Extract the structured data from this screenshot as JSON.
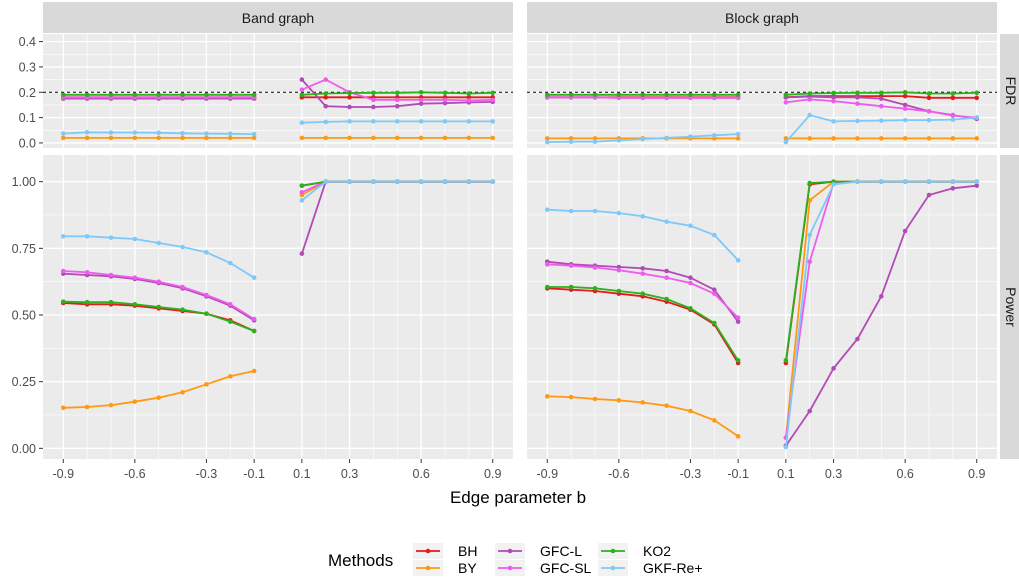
{
  "chart_data": {
    "type": "line",
    "xlabel": "Edge parameter b",
    "x_ticks": [
      -0.9,
      -0.6,
      -0.3,
      -0.1,
      0.1,
      0.3,
      0.6,
      0.9
    ],
    "x_tick_labels": [
      "-0.9",
      "-0.6",
      "-0.3",
      "-0.1",
      "0.1",
      "0.3",
      "0.6",
      "0.9"
    ],
    "panel_cols": [
      "Band graph",
      "Block graph"
    ],
    "panel_rows": [
      "FDR",
      "Power"
    ],
    "fdr_y_ticks": [
      0.0,
      0.1,
      0.2,
      0.3,
      0.4
    ],
    "fdr_y_tick_labels": [
      "0.0",
      "0.1",
      "0.2",
      "0.3",
      "0.4"
    ],
    "fdr_ylim": [
      -0.02,
      0.43
    ],
    "fdr_reference_line": 0.2,
    "power_y_ticks": [
      0.0,
      0.25,
      0.5,
      0.75,
      1.0
    ],
    "power_y_tick_labels": [
      "0.00",
      "0.25",
      "0.50",
      "0.75",
      "1.00"
    ],
    "power_ylim": [
      -0.04,
      1.1
    ],
    "grid": true,
    "legend_title": "Methods",
    "legend_position": "bottom",
    "methods": [
      {
        "name": "BH",
        "color": "#E41A1C"
      },
      {
        "name": "BY",
        "color": "#FF9912"
      },
      {
        "name": "GFC-L",
        "color": "#B24BB5"
      },
      {
        "name": "GFC-SL",
        "color": "#EE5CEE"
      },
      {
        "name": "KO2",
        "color": "#2DB11D"
      },
      {
        "name": "GKF-Re+",
        "color": "#7FC9F9"
      }
    ],
    "x_neg": [
      -0.9,
      -0.8,
      -0.7,
      -0.6,
      -0.5,
      -0.4,
      -0.3,
      -0.2,
      -0.1
    ],
    "x_pos": [
      0.1,
      0.2,
      0.3,
      0.4,
      0.5,
      0.6,
      0.7,
      0.8,
      0.9
    ],
    "panels": [
      {
        "col": "Band graph",
        "row": "FDR",
        "series": [
          {
            "name": "BH",
            "neg": [
              0.18,
              0.18,
              0.18,
              0.18,
              0.18,
              0.18,
              0.18,
              0.18,
              0.18
            ],
            "pos": [
              0.18,
              0.18,
              0.18,
              0.18,
              0.18,
              0.18,
              0.18,
              0.18,
              0.18
            ]
          },
          {
            "name": "BY",
            "neg": [
              0.02,
              0.02,
              0.02,
              0.02,
              0.02,
              0.02,
              0.02,
              0.02,
              0.02
            ],
            "pos": [
              0.02,
              0.02,
              0.02,
              0.02,
              0.02,
              0.02,
              0.02,
              0.02,
              0.02
            ]
          },
          {
            "name": "GFC-L",
            "neg": [
              0.175,
              0.175,
              0.175,
              0.175,
              0.175,
              0.175,
              0.175,
              0.175,
              0.175
            ],
            "pos": [
              0.25,
              0.145,
              0.142,
              0.142,
              0.145,
              0.155,
              0.157,
              0.16,
              0.162
            ]
          },
          {
            "name": "GFC-SL",
            "neg": [
              0.18,
              0.18,
              0.18,
              0.18,
              0.18,
              0.18,
              0.18,
              0.18,
              0.18
            ],
            "pos": [
              0.21,
              0.25,
              0.2,
              0.17,
              0.17,
              0.17,
              0.17,
              0.168,
              0.17
            ]
          },
          {
            "name": "KO2",
            "neg": [
              0.19,
              0.19,
              0.19,
              0.19,
              0.19,
              0.19,
              0.19,
              0.19,
              0.19
            ],
            "pos": [
              0.19,
              0.195,
              0.197,
              0.198,
              0.198,
              0.2,
              0.198,
              0.195,
              0.198
            ]
          },
          {
            "name": "GKF-Re+",
            "neg": [
              0.037,
              0.042,
              0.041,
              0.041,
              0.04,
              0.038,
              0.037,
              0.036,
              0.035
            ],
            "pos": [
              0.08,
              0.083,
              0.085,
              0.085,
              0.085,
              0.085,
              0.085,
              0.085,
              0.085
            ]
          }
        ]
      },
      {
        "col": "Block graph",
        "row": "FDR",
        "series": [
          {
            "name": "BH",
            "neg": [
              0.18,
              0.18,
              0.18,
              0.18,
              0.18,
              0.18,
              0.18,
              0.18,
              0.18
            ],
            "pos": [
              0.18,
              0.185,
              0.185,
              0.185,
              0.185,
              0.185,
              0.178,
              0.178,
              0.178
            ]
          },
          {
            "name": "BY",
            "neg": [
              0.018,
              0.018,
              0.018,
              0.018,
              0.018,
              0.018,
              0.018,
              0.018,
              0.018
            ],
            "pos": [
              0.018,
              0.018,
              0.018,
              0.018,
              0.018,
              0.018,
              0.018,
              0.018,
              0.018
            ]
          },
          {
            "name": "GFC-L",
            "neg": [
              0.18,
              0.18,
              0.18,
              0.178,
              0.178,
              0.178,
              0.178,
              0.178,
              0.178
            ],
            "pos": [
              0.18,
              0.183,
              0.18,
              0.18,
              0.175,
              0.15,
              0.125,
              0.11,
              0.095
            ]
          },
          {
            "name": "GFC-SL",
            "neg": [
              0.18,
              0.18,
              0.18,
              0.178,
              0.178,
              0.178,
              0.178,
              0.178,
              0.178
            ],
            "pos": [
              0.16,
              0.172,
              0.165,
              0.155,
              0.145,
              0.135,
              0.125,
              0.108,
              0.1
            ]
          },
          {
            "name": "KO2",
            "neg": [
              0.19,
              0.19,
              0.19,
              0.19,
              0.19,
              0.19,
              0.19,
              0.19,
              0.19
            ],
            "pos": [
              0.19,
              0.195,
              0.197,
              0.198,
              0.198,
              0.2,
              0.195,
              0.195,
              0.198
            ]
          },
          {
            "name": "GKF-Re+",
            "neg": [
              0.003,
              0.005,
              0.005,
              0.01,
              0.015,
              0.02,
              0.025,
              0.03,
              0.035
            ],
            "pos": [
              0.003,
              0.11,
              0.085,
              0.087,
              0.088,
              0.09,
              0.09,
              0.092,
              0.1
            ]
          }
        ]
      },
      {
        "col": "Band graph",
        "row": "Power",
        "series": [
          {
            "name": "BH",
            "neg": [
              0.545,
              0.54,
              0.54,
              0.535,
              0.525,
              0.515,
              0.505,
              0.48,
              0.44
            ],
            "pos": [
              0.985,
              1.0,
              1.0,
              1.0,
              1.0,
              1.0,
              1.0,
              1.0,
              1.0
            ]
          },
          {
            "name": "BY",
            "neg": [
              0.152,
              0.155,
              0.162,
              0.175,
              0.19,
              0.21,
              0.24,
              0.27,
              0.29
            ],
            "pos": [
              0.95,
              1.0,
              1.0,
              1.0,
              1.0,
              1.0,
              1.0,
              1.0,
              1.0
            ]
          },
          {
            "name": "GFC-L",
            "neg": [
              0.655,
              0.65,
              0.645,
              0.635,
              0.62,
              0.6,
              0.57,
              0.535,
              0.48
            ],
            "pos": [
              0.73,
              1.0,
              1.0,
              1.0,
              1.0,
              1.0,
              1.0,
              1.0,
              1.0
            ]
          },
          {
            "name": "GFC-SL",
            "neg": [
              0.665,
              0.66,
              0.65,
              0.64,
              0.625,
              0.605,
              0.575,
              0.54,
              0.485
            ],
            "pos": [
              0.96,
              1.0,
              1.0,
              1.0,
              1.0,
              1.0,
              1.0,
              1.0,
              1.0
            ]
          },
          {
            "name": "KO2",
            "neg": [
              0.55,
              0.548,
              0.548,
              0.54,
              0.53,
              0.52,
              0.505,
              0.475,
              0.44
            ],
            "pos": [
              0.985,
              1.0,
              1.0,
              1.0,
              1.0,
              1.0,
              1.0,
              1.0,
              1.0
            ]
          },
          {
            "name": "GKF-Re+",
            "neg": [
              0.795,
              0.795,
              0.79,
              0.785,
              0.77,
              0.755,
              0.735,
              0.695,
              0.64
            ],
            "pos": [
              0.93,
              1.0,
              1.0,
              1.0,
              1.0,
              1.0,
              1.0,
              1.0,
              1.0
            ]
          }
        ]
      },
      {
        "col": "Block graph",
        "row": "Power",
        "series": [
          {
            "name": "BH",
            "neg": [
              0.6,
              0.595,
              0.59,
              0.58,
              0.57,
              0.55,
              0.52,
              0.465,
              0.32
            ],
            "pos": [
              0.32,
              0.99,
              1.0,
              1.0,
              1.0,
              1.0,
              1.0,
              1.0,
              1.0
            ]
          },
          {
            "name": "BY",
            "neg": [
              0.195,
              0.192,
              0.185,
              0.18,
              0.172,
              0.16,
              0.14,
              0.105,
              0.045
            ],
            "pos": [
              0.04,
              0.93,
              1.0,
              1.0,
              1.0,
              1.0,
              1.0,
              1.0,
              1.0
            ]
          },
          {
            "name": "GFC-L",
            "neg": [
              0.7,
              0.69,
              0.685,
              0.68,
              0.675,
              0.665,
              0.64,
              0.595,
              0.475
            ],
            "pos": [
              0.01,
              0.14,
              0.3,
              0.41,
              0.57,
              0.815,
              0.95,
              0.975,
              0.985
            ]
          },
          {
            "name": "GFC-SL",
            "neg": [
              0.69,
              0.685,
              0.678,
              0.668,
              0.655,
              0.64,
              0.62,
              0.58,
              0.49
            ],
            "pos": [
              0.04,
              0.7,
              0.995,
              1.0,
              1.0,
              1.0,
              1.0,
              1.0,
              1.0
            ]
          },
          {
            "name": "KO2",
            "neg": [
              0.605,
              0.605,
              0.6,
              0.59,
              0.58,
              0.56,
              0.525,
              0.47,
              0.33
            ],
            "pos": [
              0.33,
              0.995,
              1.0,
              1.0,
              1.0,
              1.0,
              1.0,
              1.0,
              1.0
            ]
          },
          {
            "name": "GKF-Re+",
            "neg": [
              0.895,
              0.89,
              0.89,
              0.882,
              0.87,
              0.85,
              0.835,
              0.8,
              0.705
            ],
            "pos": [
              0.005,
              0.8,
              0.99,
              1.0,
              1.0,
              1.0,
              1.0,
              1.0,
              1.0
            ]
          }
        ]
      }
    ]
  }
}
